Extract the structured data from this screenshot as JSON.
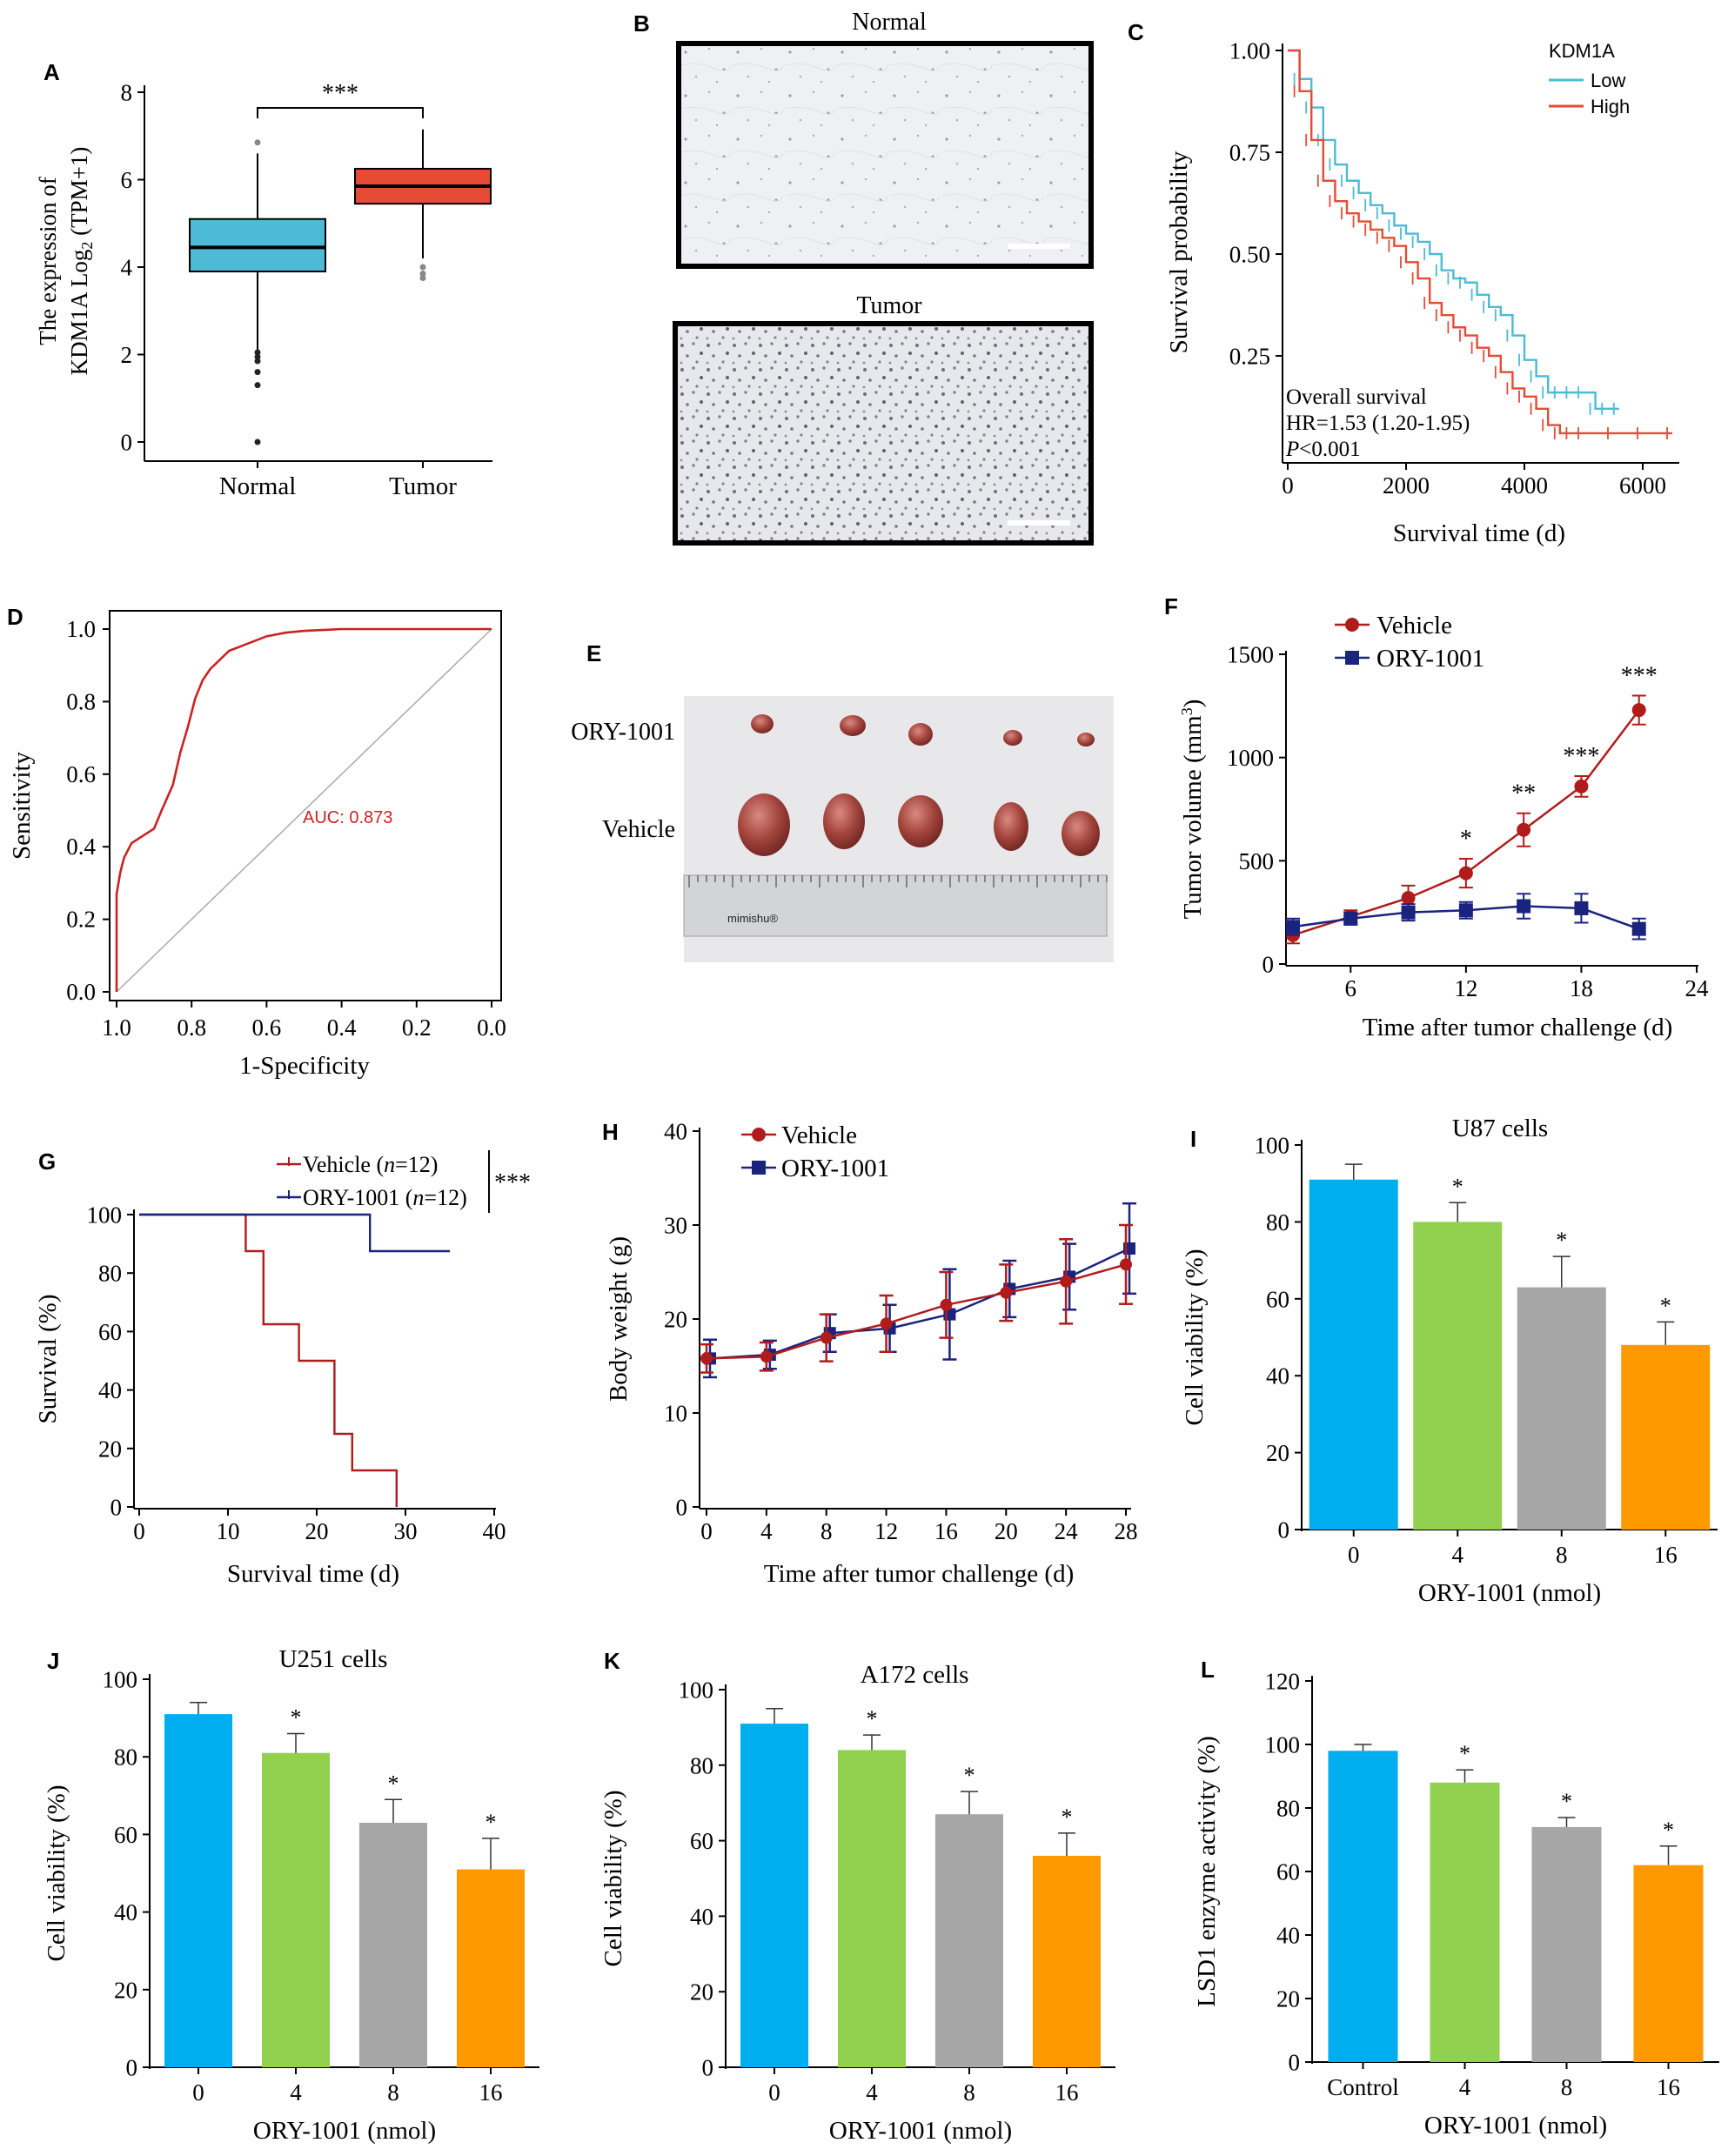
{
  "panel_labels": {
    "A": "A",
    "B": "B",
    "C": "C",
    "D": "D",
    "E": "E",
    "F": "F",
    "G": "G",
    "H": "H",
    "I": "I",
    "J": "J",
    "K": "K",
    "L": "L"
  },
  "colors": {
    "blue": "#00aeef",
    "green": "#92d050",
    "gray": "#a6a6a6",
    "orange": "#ff9900",
    "box_normal": "#4dbbd5",
    "box_tumor": "#e64b35",
    "km_low": "#4dbbd5",
    "km_high": "#e64b35",
    "roc": "#cc2222",
    "vehicle": "#b01c1c",
    "ory": "#1a237e"
  },
  "panelB": {
    "normal_title": "Normal",
    "tumor_title": "Tumor"
  },
  "panelE": {
    "row1_label": "ORY-1001",
    "row2_label": "Vehicle",
    "ruler_brand": "mimishu®"
  },
  "chart_data": [
    {
      "panel": "A",
      "type": "box",
      "categories": [
        "Normal",
        "Tumor"
      ],
      "boxes": [
        {
          "name": "Normal",
          "q1": 3.9,
          "median": 4.45,
          "q3": 5.1,
          "whisker_low": 2.1,
          "whisker_high": 6.6,
          "outliers": [
            6.85,
            2.05,
            1.95,
            1.85,
            1.6,
            1.3,
            0.0
          ]
        },
        {
          "name": "Tumor",
          "q1": 5.45,
          "median": 5.85,
          "q3": 6.25,
          "whisker_low": 4.2,
          "whisker_high": 7.15,
          "outliers": [
            4.0,
            3.85,
            3.75
          ]
        }
      ],
      "ylabel": "The expression of KDM1A Log2 (TPM+1)",
      "ylim": [
        0,
        8
      ],
      "yticks": [
        "0",
        "2",
        "4",
        "6",
        "8"
      ],
      "significance": "***"
    },
    {
      "panel": "C",
      "type": "line",
      "title": "KDM1A",
      "xlabel": "Survival time (d)",
      "ylabel": "Survival probability",
      "xlim": [
        0,
        6500
      ],
      "ylim": [
        0,
        1
      ],
      "xticks": [
        "0",
        "2000",
        "4000",
        "6000"
      ],
      "yticks": [
        "0.25",
        "0.50",
        "0.75",
        "1.00"
      ],
      "series": [
        {
          "name": "Low",
          "x": [
            0,
            200,
            400,
            600,
            800,
            1000,
            1200,
            1400,
            1600,
            1800,
            2000,
            2200,
            2400,
            2600,
            2800,
            3000,
            3200,
            3400,
            3600,
            3800,
            4000,
            4200,
            4400,
            4600,
            4800,
            5000,
            5200,
            5400,
            5600
          ],
          "y": [
            1.0,
            0.93,
            0.86,
            0.78,
            0.72,
            0.68,
            0.65,
            0.62,
            0.6,
            0.57,
            0.55,
            0.53,
            0.5,
            0.46,
            0.44,
            0.43,
            0.4,
            0.37,
            0.35,
            0.3,
            0.24,
            0.2,
            0.16,
            0.16,
            0.16,
            0.16,
            0.12,
            0.12,
            0.12
          ]
        },
        {
          "name": "High",
          "x": [
            0,
            200,
            400,
            600,
            800,
            1000,
            1200,
            1400,
            1600,
            1800,
            2000,
            2200,
            2400,
            2600,
            2800,
            3000,
            3200,
            3400,
            3600,
            3800,
            4000,
            4200,
            4400,
            4600,
            4800,
            5000,
            5500,
            6000,
            6500
          ],
          "y": [
            1.0,
            0.9,
            0.78,
            0.68,
            0.63,
            0.6,
            0.58,
            0.56,
            0.54,
            0.52,
            0.48,
            0.44,
            0.38,
            0.35,
            0.32,
            0.3,
            0.27,
            0.25,
            0.21,
            0.17,
            0.15,
            0.12,
            0.08,
            0.06,
            0.06,
            0.06,
            0.06,
            0.06,
            0.06
          ]
        }
      ],
      "annotations": [
        "Overall survival",
        "HR=1.53 (1.20-1.95)",
        "P<0.001"
      ]
    },
    {
      "panel": "D",
      "type": "line",
      "xlabel": "1-Specificity",
      "ylabel": "Sensitivity",
      "xticks": [
        "1.0",
        "0.8",
        "0.6",
        "0.4",
        "0.2",
        "0.0"
      ],
      "yticks": [
        "0.0",
        "0.2",
        "0.4",
        "0.6",
        "0.8",
        "1.0"
      ],
      "x": [
        1.0,
        1.0,
        0.99,
        0.98,
        0.96,
        0.93,
        0.9,
        0.88,
        0.85,
        0.83,
        0.81,
        0.79,
        0.77,
        0.75,
        0.72,
        0.7,
        0.65,
        0.6,
        0.55,
        0.5,
        0.4,
        0.3,
        0.2,
        0.1,
        0.0
      ],
      "y": [
        0.0,
        0.27,
        0.33,
        0.37,
        0.41,
        0.43,
        0.45,
        0.5,
        0.57,
        0.66,
        0.73,
        0.81,
        0.86,
        0.89,
        0.92,
        0.94,
        0.96,
        0.98,
        0.99,
        0.995,
        1.0,
        1.0,
        1.0,
        1.0,
        1.0
      ],
      "annotation": "AUC: 0.873"
    },
    {
      "panel": "F",
      "type": "line",
      "xlabel": "Time after tumor challenge (d)",
      "ylabel": "Tumor volume (mm3)",
      "xlim": [
        3,
        24
      ],
      "ylim": [
        0,
        1500
      ],
      "xticks": [
        "6",
        "12",
        "18",
        "24"
      ],
      "yticks": [
        "0",
        "500",
        "1000",
        "1500"
      ],
      "x": [
        3,
        6,
        9,
        12,
        15,
        18,
        21
      ],
      "series": [
        {
          "name": "Vehicle",
          "values": [
            140,
            230,
            320,
            440,
            650,
            860,
            1230
          ],
          "errors": [
            40,
            30,
            60,
            70,
            80,
            50,
            70
          ]
        },
        {
          "name": "ORY-1001",
          "values": [
            180,
            220,
            250,
            260,
            280,
            270,
            170
          ],
          "errors": [
            40,
            30,
            40,
            40,
            60,
            70,
            50
          ]
        }
      ],
      "significance": [
        {
          "x": 12,
          "label": "*"
        },
        {
          "x": 15,
          "label": "**"
        },
        {
          "x": 18,
          "label": "***"
        },
        {
          "x": 21,
          "label": "***"
        }
      ]
    },
    {
      "panel": "G",
      "type": "line",
      "xlabel": "Survival time (d)",
      "ylabel": "Survival (%)",
      "xlim": [
        0,
        40
      ],
      "ylim": [
        0,
        100
      ],
      "xticks": [
        "0",
        "10",
        "20",
        "30",
        "40"
      ],
      "yticks": [
        "0",
        "20",
        "40",
        "60",
        "80",
        "100"
      ],
      "series": [
        {
          "name": "Vehicle (n=12)",
          "x": [
            0,
            12,
            12,
            14,
            14,
            18,
            18,
            22,
            22,
            24,
            24,
            29,
            29
          ],
          "y": [
            100,
            100,
            87.5,
            87.5,
            62.5,
            62.5,
            50,
            50,
            25,
            25,
            12.5,
            12.5,
            0
          ]
        },
        {
          "name": "ORY-1001 (n=12)",
          "x": [
            0,
            26,
            26,
            35
          ],
          "y": [
            100,
            100,
            87.5,
            87.5
          ]
        }
      ],
      "significance": "***"
    },
    {
      "panel": "H",
      "type": "line",
      "xlabel": "Time after tumor challenge (d)",
      "ylabel": "Body weight (g)",
      "xlim": [
        0,
        28
      ],
      "ylim": [
        0,
        40
      ],
      "xticks": [
        "0",
        "4",
        "8",
        "12",
        "16",
        "20",
        "24",
        "28"
      ],
      "yticks": [
        "0",
        "10",
        "20",
        "30",
        "40"
      ],
      "x": [
        0,
        4,
        8,
        12,
        16,
        20,
        24,
        28
      ],
      "series": [
        {
          "name": "Vehicle",
          "values": [
            15.8,
            16.0,
            18.0,
            19.5,
            21.5,
            22.8,
            24.0,
            25.8
          ],
          "errors": [
            1.5,
            1.5,
            2.5,
            3.0,
            3.5,
            3.0,
            4.5,
            4.2
          ]
        },
        {
          "name": "ORY-1001",
          "values": [
            15.8,
            16.2,
            18.5,
            19.0,
            20.5,
            23.2,
            24.5,
            27.5
          ],
          "errors": [
            2.0,
            1.5,
            2.0,
            2.5,
            4.8,
            3.0,
            3.5,
            4.8
          ]
        }
      ]
    },
    {
      "panel": "I",
      "type": "bar",
      "title": "U87 cells",
      "xlabel": "ORY-1001 (nmol)",
      "ylabel": "Cell viability (%)",
      "categories": [
        "0",
        "4",
        "8",
        "16"
      ],
      "values": [
        91,
        80,
        63,
        48
      ],
      "errors": [
        4,
        5,
        8,
        6
      ],
      "ylim": [
        0,
        100
      ],
      "yticks": [
        "0",
        "20",
        "40",
        "60",
        "80",
        "100"
      ],
      "significance": [
        "",
        "*",
        "*",
        "*"
      ]
    },
    {
      "panel": "J",
      "type": "bar",
      "title": "U251 cells",
      "xlabel": "ORY-1001 (nmol)",
      "ylabel": "Cell viability (%)",
      "categories": [
        "0",
        "4",
        "8",
        "16"
      ],
      "values": [
        91,
        81,
        63,
        51
      ],
      "errors": [
        3,
        5,
        6,
        8
      ],
      "ylim": [
        0,
        100
      ],
      "yticks": [
        "0",
        "20",
        "40",
        "60",
        "80",
        "100"
      ],
      "significance": [
        "",
        "*",
        "*",
        "*"
      ]
    },
    {
      "panel": "K",
      "type": "bar",
      "title": "A172 cells",
      "xlabel": "ORY-1001 (nmol)",
      "ylabel": "Cell viability (%)",
      "categories": [
        "0",
        "4",
        "8",
        "16"
      ],
      "values": [
        91,
        84,
        67,
        56
      ],
      "errors": [
        4,
        4,
        6,
        6
      ],
      "ylim": [
        0,
        100
      ],
      "yticks": [
        "0",
        "20",
        "40",
        "60",
        "80",
        "100"
      ],
      "significance": [
        "",
        "*",
        "*",
        "*"
      ]
    },
    {
      "panel": "L",
      "type": "bar",
      "xlabel": "ORY-1001 (nmol)",
      "ylabel": "LSD1 enzyme activity (%)",
      "categories": [
        "Control",
        "4",
        "8",
        "16"
      ],
      "values": [
        98,
        88,
        74,
        62
      ],
      "errors": [
        2,
        4,
        3,
        6
      ],
      "ylim": [
        0,
        120
      ],
      "yticks": [
        "0",
        "20",
        "40",
        "60",
        "80",
        "100",
        "120"
      ],
      "significance": [
        "",
        "*",
        "*",
        "*"
      ]
    }
  ]
}
